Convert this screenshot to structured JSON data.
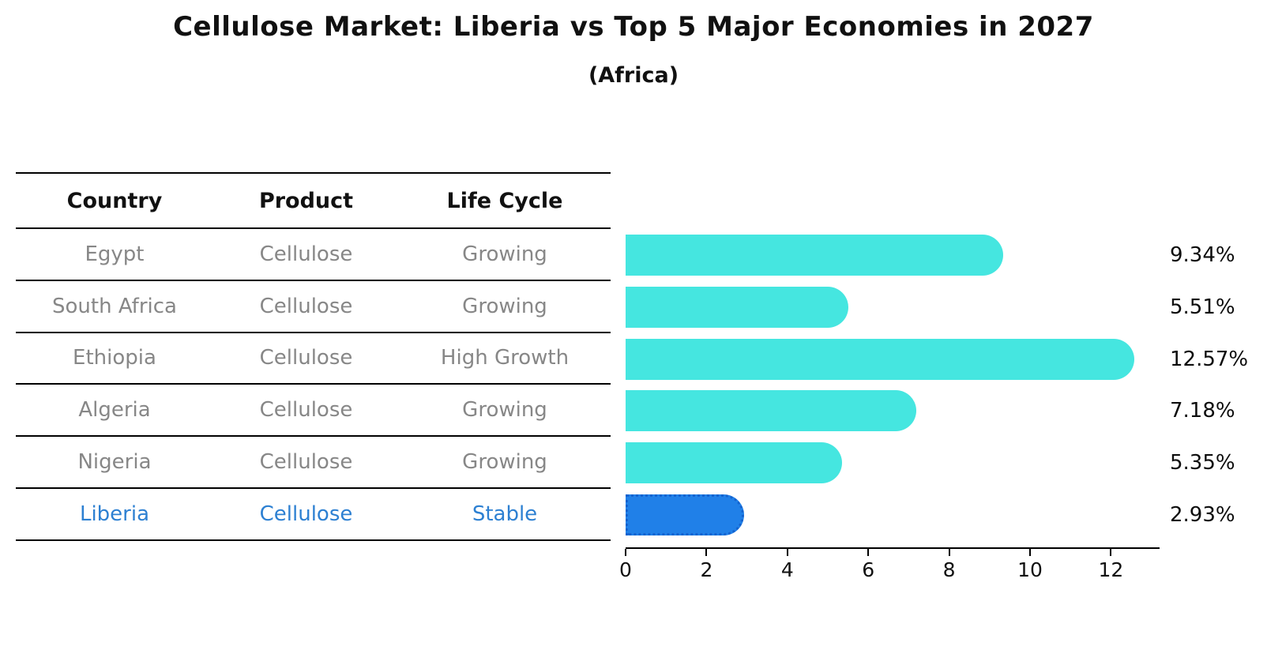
{
  "title": "Cellulose Market: Liberia vs Top 5 Major Economies in 2027",
  "subtitle": "(Africa)",
  "table": {
    "headers": [
      "Country",
      "Product",
      "Life Cycle"
    ],
    "rows": [
      {
        "country": "Egypt",
        "product": "Cellulose",
        "life_cycle": "Growing",
        "highlight": false
      },
      {
        "country": "South Africa",
        "product": "Cellulose",
        "life_cycle": "Growing",
        "highlight": false
      },
      {
        "country": "Ethiopia",
        "product": "Cellulose",
        "life_cycle": "High Growth",
        "highlight": false
      },
      {
        "country": "Algeria",
        "product": "Cellulose",
        "life_cycle": "Growing",
        "highlight": false
      },
      {
        "country": "Nigeria",
        "product": "Cellulose",
        "life_cycle": "Growing",
        "highlight": false
      },
      {
        "country": "Liberia",
        "product": "Cellulose",
        "life_cycle": "Stable",
        "highlight": true
      }
    ]
  },
  "chart_data": {
    "type": "bar",
    "orientation": "horizontal",
    "categories": [
      "Egypt",
      "South Africa",
      "Ethiopia",
      "Algeria",
      "Nigeria",
      "Liberia"
    ],
    "values": [
      9.34,
      5.51,
      12.57,
      7.18,
      5.35,
      2.93
    ],
    "value_labels": [
      "9.34%",
      "5.51%",
      "12.57%",
      "7.18%",
      "5.35%",
      "2.93%"
    ],
    "title": "Cellulose Market: Liberia vs Top 5 Major Economies in 2027",
    "subtitle": "(Africa)",
    "xlabel": "",
    "ylabel": "",
    "xlim": [
      0,
      13.2
    ],
    "xticks": [
      0,
      2,
      4,
      6,
      8,
      10,
      12
    ],
    "grid": false,
    "legend": false,
    "highlight_index": 5
  },
  "colors": {
    "bar": "#45E6E0",
    "highlight_bar": "#2080E8",
    "highlight_border": "#1463CF",
    "highlight_text": "#2D80D2",
    "row_text": "#878787",
    "header_text": "#111111",
    "line": "#000000"
  }
}
